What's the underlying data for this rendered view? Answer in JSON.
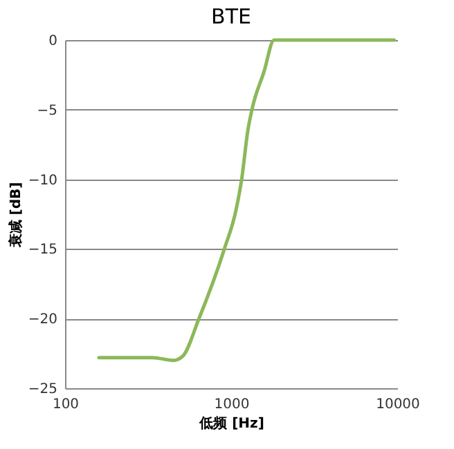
{
  "chart_data": {
    "type": "line",
    "title": "BTE",
    "xlabel": "低频 [Hz]",
    "ylabel": "衰减 [dB]",
    "log": "x",
    "grid": "y",
    "marker": "none",
    "line_style": "solid",
    "xlim": [
      100,
      10000
    ],
    "xticks": [
      100,
      1000,
      10000
    ],
    "ylim": [
      -25,
      0
    ],
    "yticks": [
      -25,
      -20,
      -15,
      -10,
      -5,
      0
    ],
    "series": [
      {
        "color": "#8cb85a",
        "x": [
          160,
          336,
          449,
          511,
          640,
          910,
          1070,
          1157,
          1260,
          1340,
          1574,
          1815,
          9580
        ],
        "values": [
          -22.8,
          -22.8,
          -23.0,
          -22.7,
          -20,
          -15,
          -12.2,
          -10,
          -6.5,
          -4.9,
          -2.3,
          0,
          0
        ]
      }
    ]
  }
}
